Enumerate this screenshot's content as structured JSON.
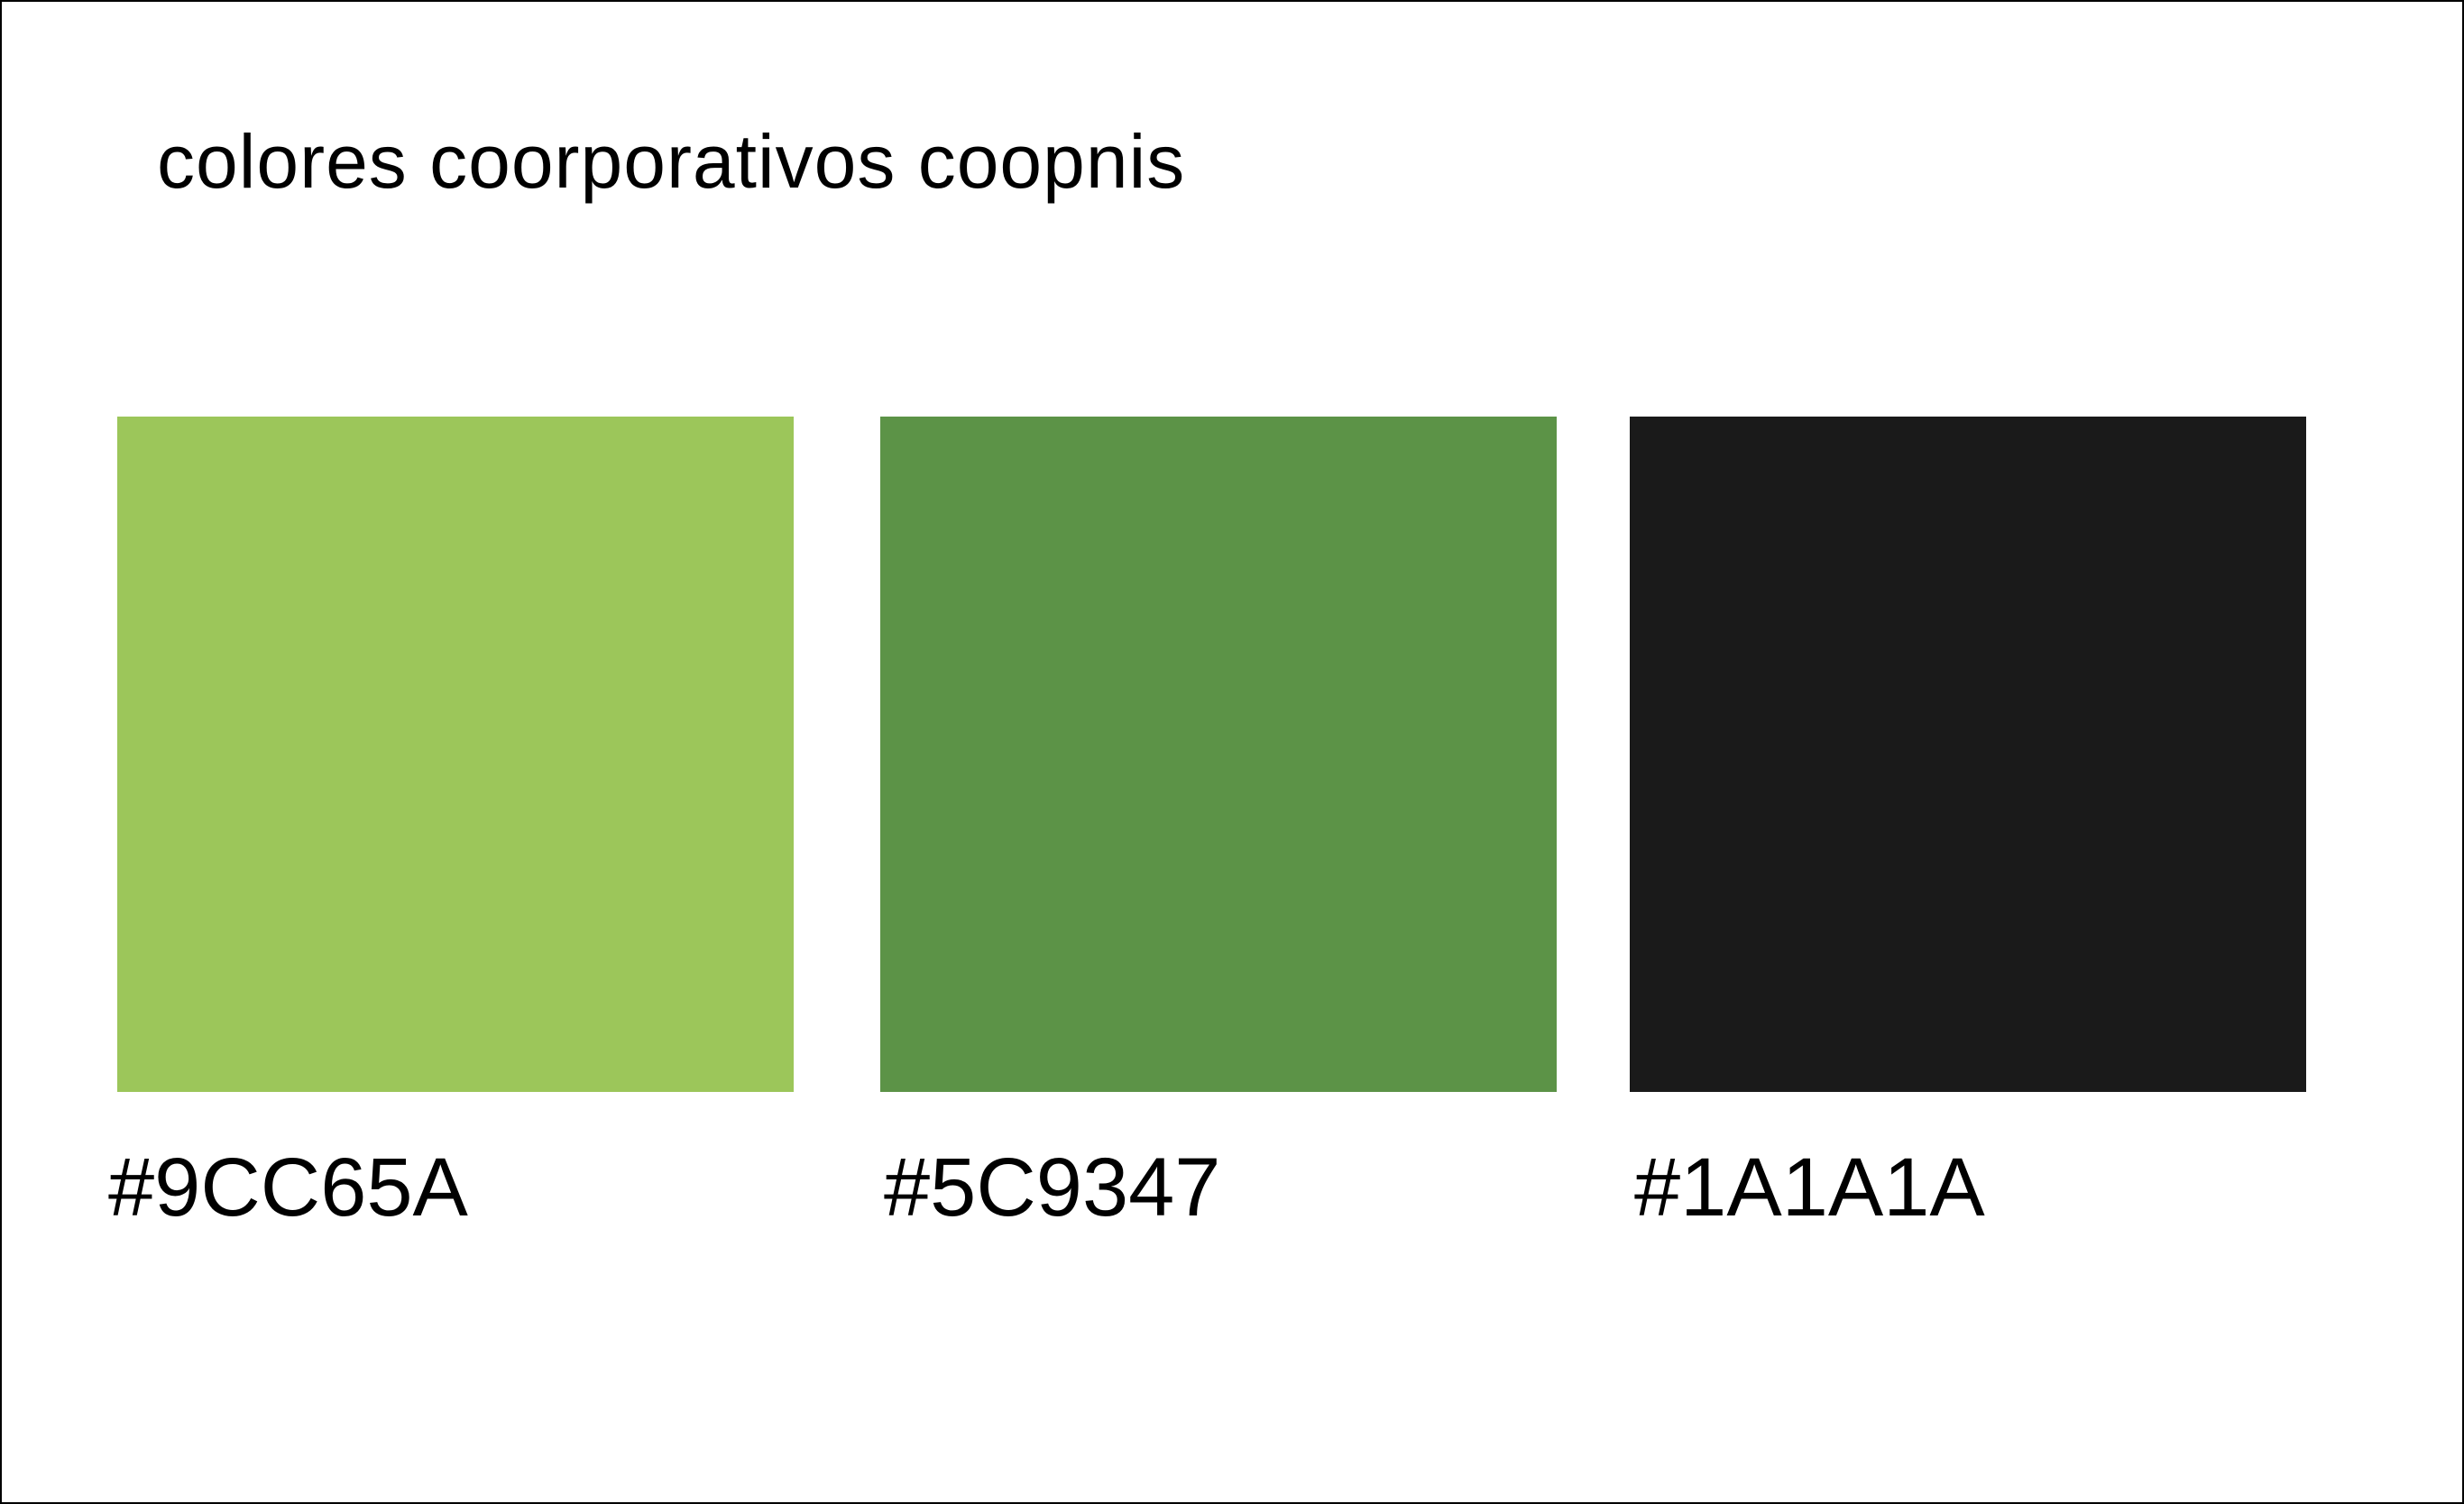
{
  "title": "colores coorporativos coopnis",
  "swatches": [
    {
      "label": "#9CC65A",
      "color": "#9CC65A"
    },
    {
      "label": "#5C9347",
      "color": "#5C9347"
    },
    {
      "label": "#1A1A1A",
      "color": "#1A1A1A"
    }
  ]
}
